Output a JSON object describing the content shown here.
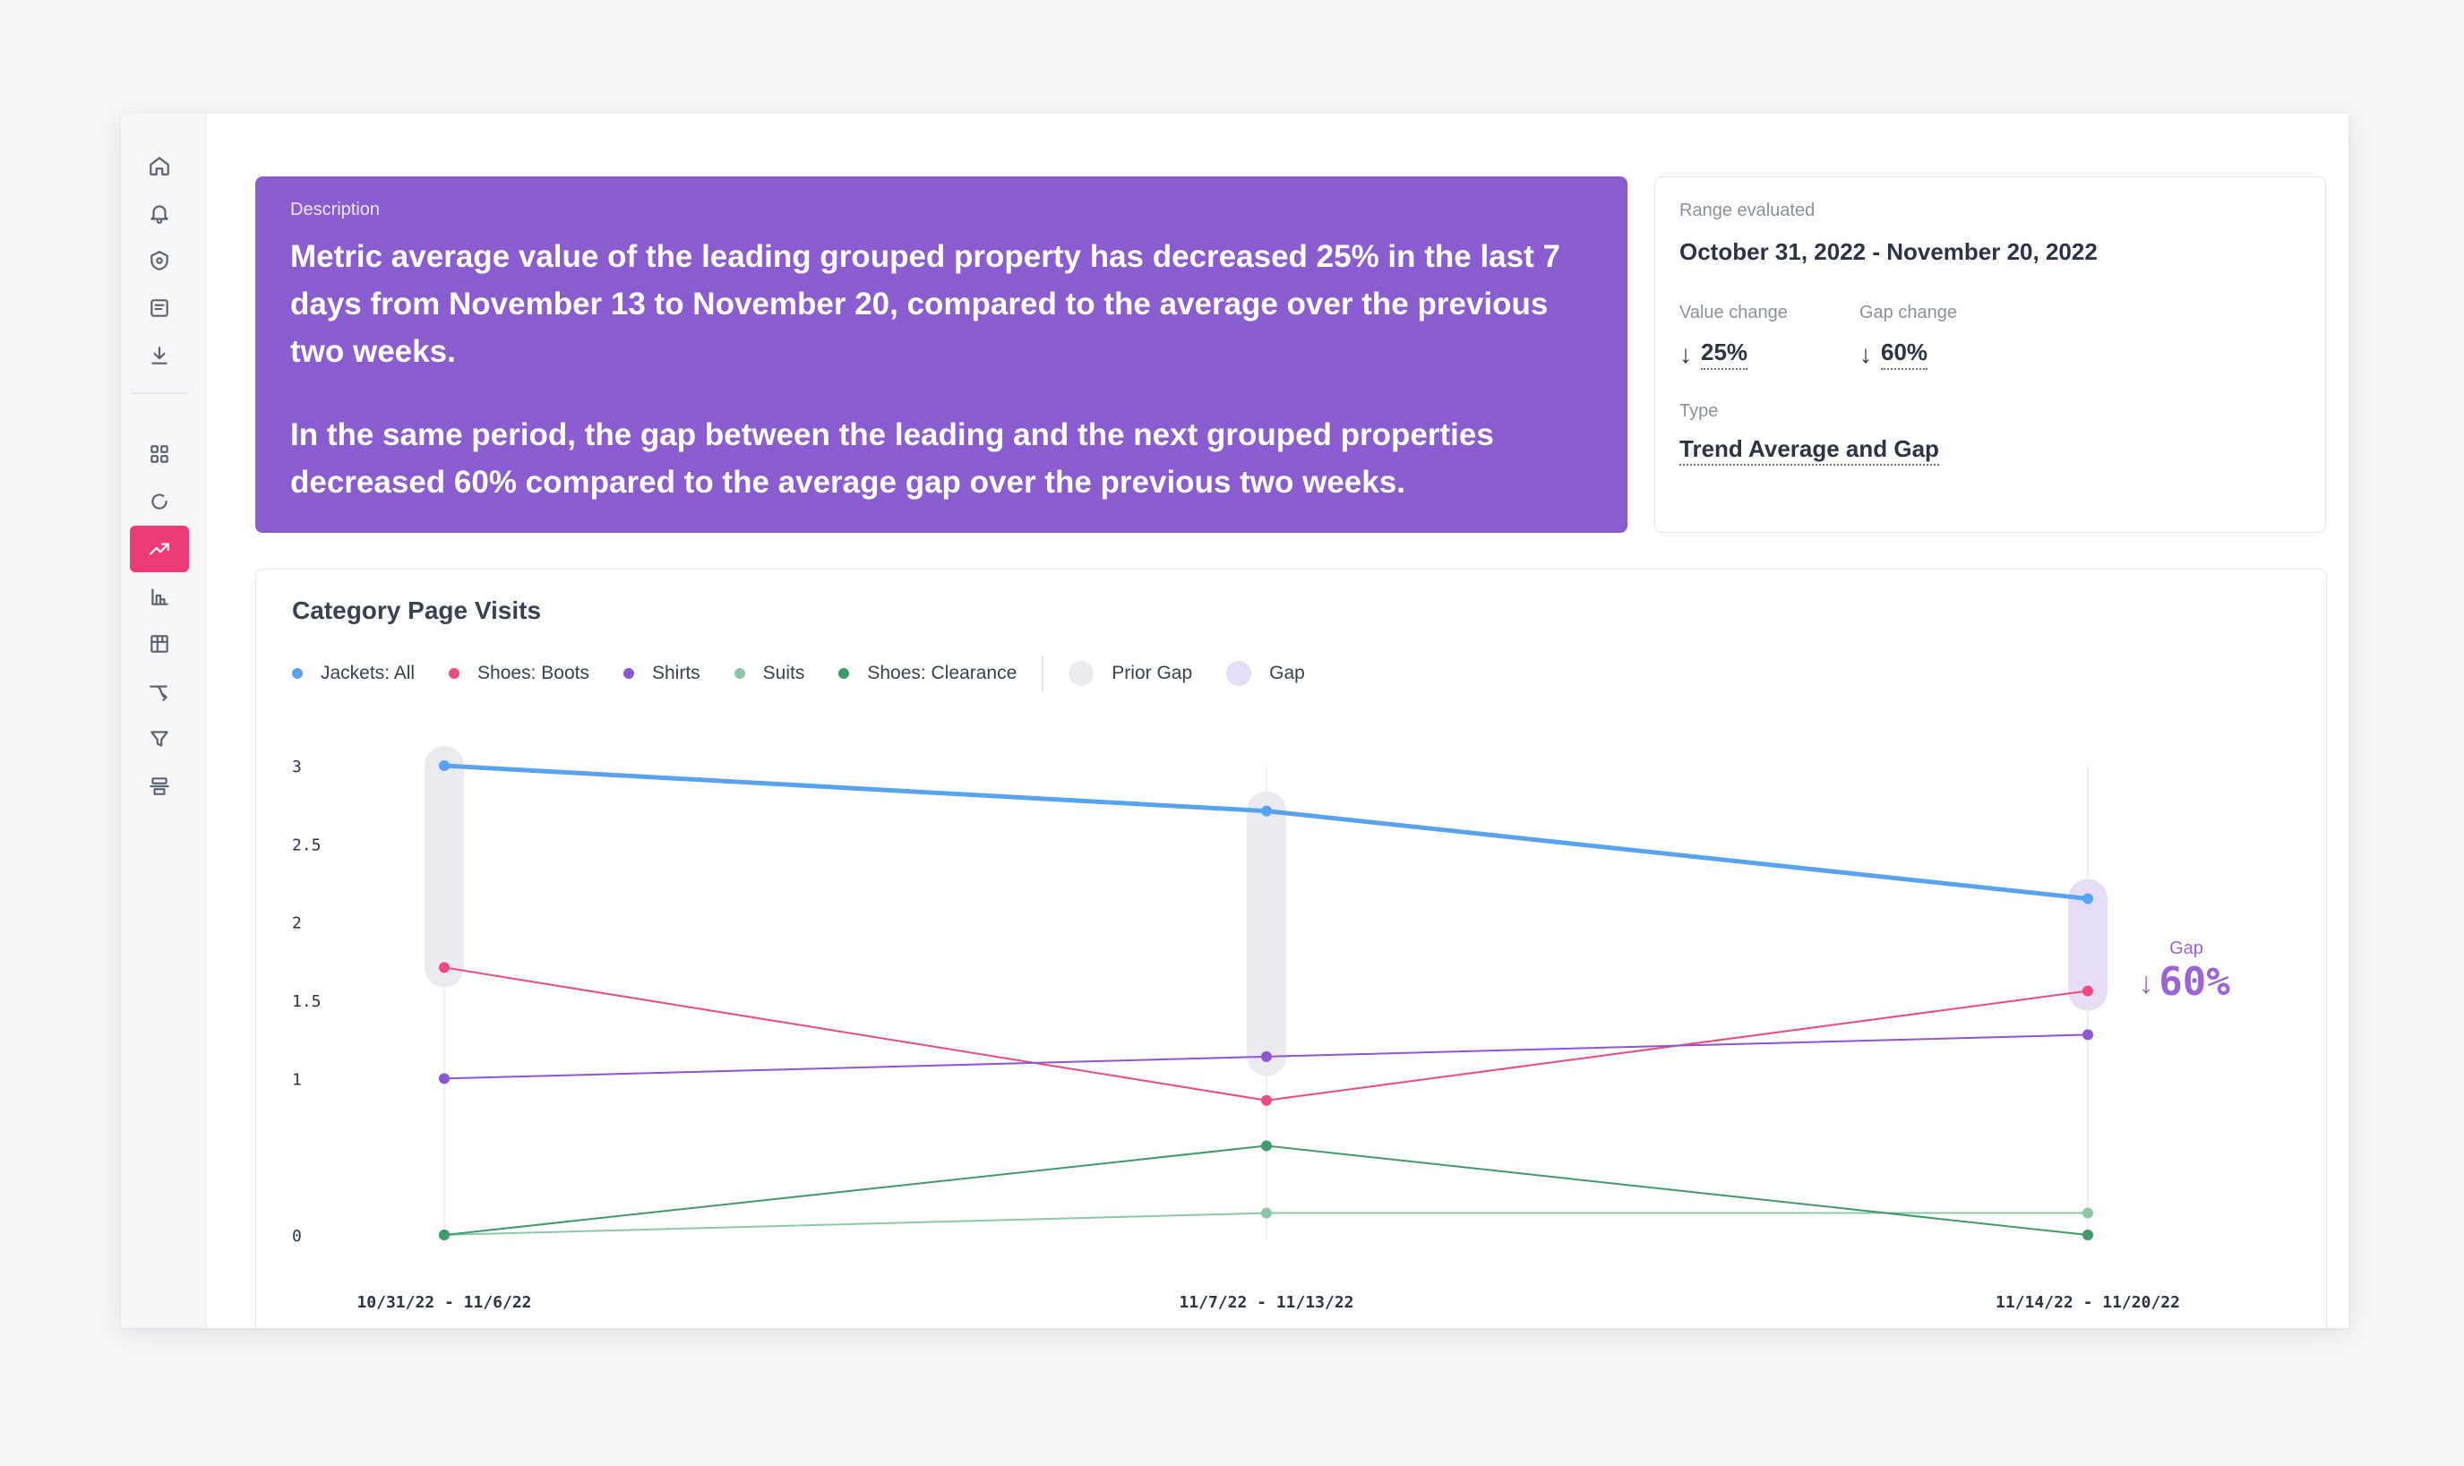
{
  "sidebar": {
    "items": [
      {
        "name": "home",
        "icon": "home-icon"
      },
      {
        "name": "alerts",
        "icon": "bell-icon"
      },
      {
        "name": "security",
        "icon": "shield-icon"
      },
      {
        "name": "notes",
        "icon": "note-icon"
      },
      {
        "name": "download",
        "icon": "download-icon"
      },
      {
        "name": "dashboard",
        "icon": "grid-icon"
      },
      {
        "name": "loading",
        "icon": "circle-icon"
      },
      {
        "name": "trends",
        "icon": "trend-up-icon",
        "active": true
      },
      {
        "name": "reports",
        "icon": "bar-chart-icon"
      },
      {
        "name": "segments",
        "icon": "segment-grid-icon"
      },
      {
        "name": "flows",
        "icon": "flow-icon"
      },
      {
        "name": "funnel",
        "icon": "funnel-icon"
      },
      {
        "name": "data",
        "icon": "database-icon"
      }
    ]
  },
  "description": {
    "label": "Description",
    "paragraph1": "Metric average value of the leading grouped property has decreased 25% in the last 7 days from November 13 to November 20, compared to the average over the previous two weeks.",
    "paragraph2": "In the same period, the gap between the leading and the next grouped properties decreased 60% compared to the average gap over the previous two weeks."
  },
  "info": {
    "range_label": "Range evaluated",
    "range_value": "October 31, 2022 - November 20, 2022",
    "value_change_label": "Value change",
    "value_change": "25%",
    "gap_change_label": "Gap change",
    "gap_change": "60%",
    "type_label": "Type",
    "type_value": "Trend Average and Gap"
  },
  "colors": {
    "accent": "#8a5ccf",
    "active_nav": "#ec3b76"
  },
  "chart_data": {
    "type": "line",
    "title": "Category Page Visits",
    "categories": [
      "10/31/22 - 11/6/22",
      "11/7/22 - 11/13/22",
      "11/14/22 - 11/20/22"
    ],
    "y_ticks": [
      "0",
      "1",
      "1.5",
      "2",
      "2.5",
      "3"
    ],
    "ylim": [
      0,
      3
    ],
    "series": [
      {
        "name": "Jackets: All",
        "color": "#58a3f0",
        "values": [
          3.0,
          2.71,
          2.15
        ],
        "width": 5
      },
      {
        "name": "Shoes: Boots",
        "color": "#ec4a80",
        "values": [
          1.71,
          0.86,
          1.56
        ],
        "width": 2
      },
      {
        "name": "Shirts",
        "color": "#8e55d4",
        "values": [
          1.0,
          1.14,
          1.28
        ],
        "width": 2
      },
      {
        "name": "Suits",
        "color": "#8cc8a6",
        "values": [
          0.0,
          0.14,
          0.14
        ],
        "width": 2
      },
      {
        "name": "Shoes: Clearance",
        "color": "#3e9a66",
        "values": [
          0.0,
          0.57,
          0.0
        ],
        "width": 2
      }
    ],
    "legend_extra": [
      {
        "name": "Prior Gap",
        "color": "#ebeaf0"
      },
      {
        "name": "Gap",
        "color": "#e6dcf6"
      }
    ],
    "gap_annotation": {
      "label": "Gap",
      "value": "60%",
      "arrow": "↓",
      "color": "#9a63d6"
    }
  }
}
